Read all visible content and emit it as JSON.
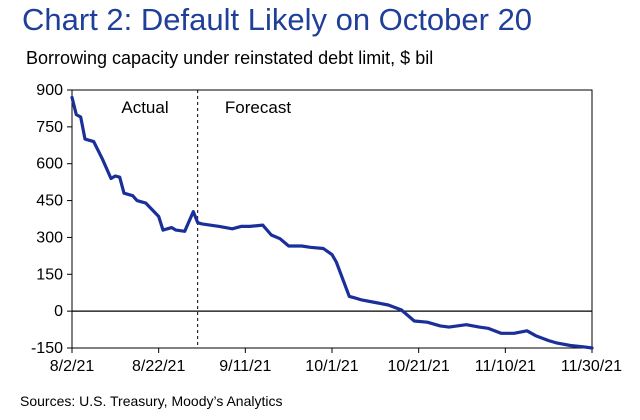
{
  "title": "Chart 2: Default Likely on October 20",
  "subtitle": "Borrowing capacity under reinstated debt limit, $ bil",
  "source": "Sources: U.S. Treasury, Moody’s Analytics",
  "colors": {
    "title": "#1f3f99",
    "series": "#1a2f9a",
    "axis": "#000000",
    "zero_line": "#000000"
  },
  "chart_data": {
    "type": "line",
    "title": "Chart 2: Default Likely on October 20",
    "subtitle": "Borrowing capacity under reinstated debt limit, $ bil",
    "xlabel": "",
    "ylabel": "",
    "xlim": [
      "2021-08-02",
      "2021-11-30"
    ],
    "ylim": [
      -150,
      900
    ],
    "x_ticks": [
      "2021-08-02",
      "2021-08-22",
      "2021-09-11",
      "2021-10-01",
      "2021-10-21",
      "2021-11-10",
      "2021-11-30"
    ],
    "x_tick_labels": [
      "8/2/21",
      "8/22/21",
      "9/11/21",
      "10/1/21",
      "10/21/21",
      "11/10/21",
      "11/30/21"
    ],
    "y_ticks": [
      -150,
      0,
      150,
      300,
      450,
      600,
      750,
      900
    ],
    "y_tick_labels": [
      "-150",
      "0",
      "150",
      "300",
      "450",
      "600",
      "750",
      "900"
    ],
    "grid": false,
    "legend": "none",
    "annotations": [
      {
        "text": "Actual"
      },
      {
        "text": "Forecast"
      }
    ],
    "divider_x": "2021-08-31",
    "series": [
      {
        "x": [
          "2021-08-02",
          "2021-08-03",
          "2021-08-04",
          "2021-08-05",
          "2021-08-07",
          "2021-08-09",
          "2021-08-11",
          "2021-08-12",
          "2021-08-13",
          "2021-08-14",
          "2021-08-16",
          "2021-08-17",
          "2021-08-18",
          "2021-08-19",
          "2021-08-22",
          "2021-08-23",
          "2021-08-25",
          "2021-08-26",
          "2021-08-28",
          "2021-08-30",
          "2021-08-31",
          "2021-09-01",
          "2021-09-05",
          "2021-09-08",
          "2021-09-10",
          "2021-09-12",
          "2021-09-15",
          "2021-09-17",
          "2021-09-19",
          "2021-09-21",
          "2021-09-24",
          "2021-09-26",
          "2021-09-29",
          "2021-10-01",
          "2021-10-02",
          "2021-10-05",
          "2021-10-06",
          "2021-10-08",
          "2021-10-11",
          "2021-10-14",
          "2021-10-17",
          "2021-10-20",
          "2021-10-23",
          "2021-10-26",
          "2021-10-28",
          "2021-11-01",
          "2021-11-04",
          "2021-11-06",
          "2021-11-09",
          "2021-11-12",
          "2021-11-15",
          "2021-11-17",
          "2021-11-20",
          "2021-11-22",
          "2021-11-25",
          "2021-11-28",
          "2021-11-30"
        ],
        "values": [
          870,
          800,
          790,
          700,
          690,
          620,
          540,
          550,
          545,
          480,
          470,
          450,
          445,
          440,
          385,
          330,
          340,
          330,
          325,
          405,
          360,
          355,
          345,
          335,
          345,
          345,
          350,
          310,
          295,
          265,
          265,
          260,
          255,
          230,
          200,
          60,
          55,
          45,
          35,
          25,
          5,
          -40,
          -45,
          -60,
          -65,
          -55,
          -65,
          -70,
          -90,
          -90,
          -80,
          -100,
          -120,
          -130,
          -140,
          -145,
          -150
        ]
      }
    ]
  }
}
